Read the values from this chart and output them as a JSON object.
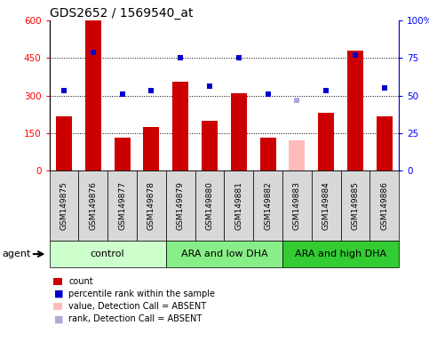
{
  "title": "GDS2652 / 1569540_at",
  "samples": [
    "GSM149875",
    "GSM149876",
    "GSM149877",
    "GSM149878",
    "GSM149879",
    "GSM149880",
    "GSM149881",
    "GSM149882",
    "GSM149883",
    "GSM149884",
    "GSM149885",
    "GSM149886"
  ],
  "bar_values": [
    215,
    600,
    130,
    175,
    355,
    200,
    310,
    130,
    null,
    230,
    480,
    215
  ],
  "absent_bar_values": [
    null,
    null,
    null,
    null,
    null,
    null,
    null,
    null,
    120,
    null,
    null,
    null
  ],
  "percentile_values": [
    53,
    79,
    51,
    53,
    75,
    56,
    75,
    51,
    null,
    53,
    77,
    55
  ],
  "absent_rank_values": [
    null,
    null,
    null,
    null,
    null,
    null,
    null,
    null,
    47,
    null,
    null,
    null
  ],
  "ylim_left": [
    0,
    600
  ],
  "ylim_right": [
    0,
    100
  ],
  "yticks_left": [
    0,
    150,
    300,
    450,
    600
  ],
  "yticks_right": [
    0,
    25,
    50,
    75,
    100
  ],
  "ytick_labels_left": [
    "0",
    "150",
    "300",
    "450",
    "600"
  ],
  "ytick_labels_right": [
    "0",
    "25",
    "50",
    "75",
    "100%"
  ],
  "groups": [
    {
      "label": "control",
      "start": 0,
      "end": 4,
      "color": "#ccffcc"
    },
    {
      "label": "ARA and low DHA",
      "start": 4,
      "end": 8,
      "color": "#88ee88"
    },
    {
      "label": "ARA and high DHA",
      "start": 8,
      "end": 12,
      "color": "#33cc33"
    }
  ],
  "agent_label": "agent",
  "bar_color_normal": "#cc0000",
  "bar_color_absent": "#ffbbbb",
  "scatter_color_normal": "#0000cc",
  "scatter_color_absent": "#aaaadd",
  "legend_items": [
    {
      "label": "count",
      "color": "#cc0000",
      "type": "bar"
    },
    {
      "label": "percentile rank within the sample",
      "color": "#0000cc",
      "type": "scatter"
    },
    {
      "label": "value, Detection Call = ABSENT",
      "color": "#ffbbbb",
      "type": "bar"
    },
    {
      "label": "rank, Detection Call = ABSENT",
      "color": "#aaaadd",
      "type": "scatter"
    }
  ],
  "grid_yticks": [
    150,
    300,
    450
  ],
  "title_fontsize": 10,
  "tick_fontsize": 7.5,
  "label_fontsize": 7.5,
  "sample_fontsize": 6.5,
  "group_fontsize": 8,
  "legend_fontsize": 7
}
